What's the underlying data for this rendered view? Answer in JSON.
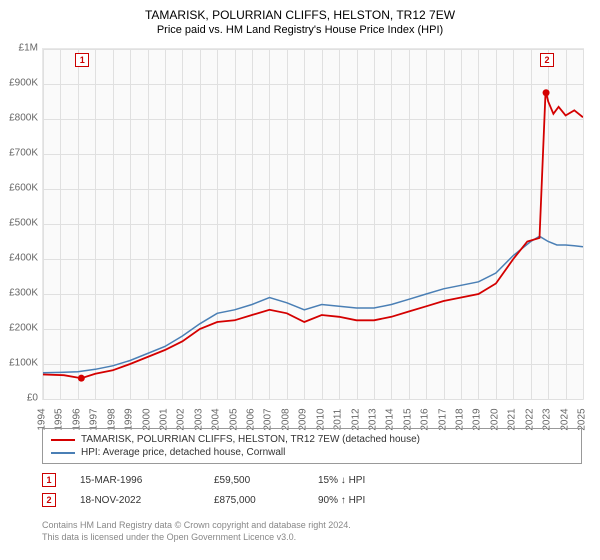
{
  "title": "TAMARISK, POLURRIAN CLIFFS, HELSTON, TR12 7EW",
  "subtitle": "Price paid vs. HM Land Registry's House Price Index (HPI)",
  "chart": {
    "type": "line",
    "background_color": "#fafafa",
    "grid_color": "#e0e0e0",
    "x_start": 1994,
    "x_end": 2025,
    "xtick_step": 1,
    "y_start": 0,
    "y_end": 1000000,
    "ytick_step": 100000,
    "ytick_labels": [
      "£0",
      "£100K",
      "£200K",
      "£300K",
      "£400K",
      "£500K",
      "£600K",
      "£700K",
      "£800K",
      "£900K",
      "£1M"
    ],
    "series": [
      {
        "id": "price_paid",
        "label": "TAMARISK, POLURRIAN CLIFFS, HELSTON, TR12 7EW (detached house)",
        "color": "#d40000",
        "line_width": 1.8,
        "points": [
          [
            1994.0,
            70000
          ],
          [
            1995.2,
            68000
          ],
          [
            1996.2,
            59500
          ],
          [
            1997.0,
            72000
          ],
          [
            1998.0,
            82000
          ],
          [
            1999.0,
            100000
          ],
          [
            2000.0,
            120000
          ],
          [
            2001.0,
            140000
          ],
          [
            2002.0,
            165000
          ],
          [
            2003.0,
            200000
          ],
          [
            2004.0,
            220000
          ],
          [
            2005.0,
            225000
          ],
          [
            2006.0,
            240000
          ],
          [
            2007.0,
            255000
          ],
          [
            2008.0,
            245000
          ],
          [
            2009.0,
            220000
          ],
          [
            2010.0,
            240000
          ],
          [
            2011.0,
            235000
          ],
          [
            2012.0,
            225000
          ],
          [
            2013.0,
            225000
          ],
          [
            2014.0,
            235000
          ],
          [
            2015.0,
            250000
          ],
          [
            2016.0,
            265000
          ],
          [
            2017.0,
            280000
          ],
          [
            2018.0,
            290000
          ],
          [
            2019.0,
            300000
          ],
          [
            2020.0,
            330000
          ],
          [
            2021.0,
            400000
          ],
          [
            2021.8,
            450000
          ],
          [
            2022.5,
            460000
          ],
          [
            2022.85,
            875000
          ],
          [
            2022.88,
            875000
          ],
          [
            2023.0,
            850000
          ],
          [
            2023.3,
            815000
          ],
          [
            2023.6,
            835000
          ],
          [
            2024.0,
            810000
          ],
          [
            2024.5,
            825000
          ],
          [
            2025.0,
            805000
          ]
        ]
      },
      {
        "id": "hpi",
        "label": "HPI: Average price, detached house, Cornwall",
        "color": "#4a7fb5",
        "line_width": 1.5,
        "points": [
          [
            1994.0,
            75000
          ],
          [
            1995.0,
            76000
          ],
          [
            1996.0,
            78000
          ],
          [
            1997.0,
            85000
          ],
          [
            1998.0,
            95000
          ],
          [
            1999.0,
            110000
          ],
          [
            2000.0,
            130000
          ],
          [
            2001.0,
            150000
          ],
          [
            2002.0,
            180000
          ],
          [
            2003.0,
            215000
          ],
          [
            2004.0,
            245000
          ],
          [
            2005.0,
            255000
          ],
          [
            2006.0,
            270000
          ],
          [
            2007.0,
            290000
          ],
          [
            2008.0,
            275000
          ],
          [
            2009.0,
            255000
          ],
          [
            2010.0,
            270000
          ],
          [
            2011.0,
            265000
          ],
          [
            2012.0,
            260000
          ],
          [
            2013.0,
            260000
          ],
          [
            2014.0,
            270000
          ],
          [
            2015.0,
            285000
          ],
          [
            2016.0,
            300000
          ],
          [
            2017.0,
            315000
          ],
          [
            2018.0,
            325000
          ],
          [
            2019.0,
            335000
          ],
          [
            2020.0,
            360000
          ],
          [
            2021.0,
            410000
          ],
          [
            2022.0,
            450000
          ],
          [
            2022.5,
            465000
          ],
          [
            2023.0,
            450000
          ],
          [
            2023.5,
            440000
          ],
          [
            2024.0,
            440000
          ],
          [
            2024.5,
            438000
          ],
          [
            2025.0,
            435000
          ]
        ]
      }
    ],
    "transaction_markers": [
      {
        "num": "1",
        "date": "15-MAR-1996",
        "price": "£59,500",
        "pct": "15%",
        "dir": "down",
        "vs": "HPI",
        "x": 1996.2,
        "y": 59500
      },
      {
        "num": "2",
        "date": "18-NOV-2022",
        "price": "£875,000",
        "pct": "90%",
        "dir": "up",
        "vs": "HPI",
        "x": 2022.88,
        "y": 875000
      }
    ]
  },
  "legend": {
    "border_color": "#999999"
  },
  "footer": {
    "line1": "Contains HM Land Registry data © Crown copyright and database right 2024.",
    "line2": "This data is licensed under the Open Government Licence v3.0."
  }
}
